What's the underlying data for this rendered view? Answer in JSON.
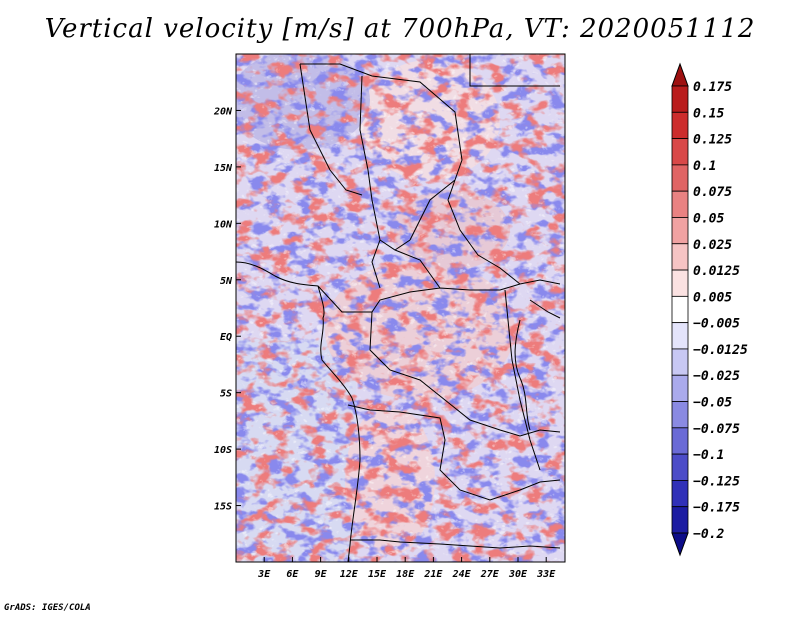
{
  "title": "Vertical velocity [m/s] at 700hPa, VT: 2020051112",
  "footer": "GrADS: IGES/COLA",
  "map": {
    "lon_range": [
      0,
      35
    ],
    "lat_range": [
      -20,
      25
    ],
    "lat_ticks": [
      {
        "value": 20,
        "label": "20N"
      },
      {
        "value": 15,
        "label": "15N"
      },
      {
        "value": 10,
        "label": "10N"
      },
      {
        "value": 5,
        "label": "5N"
      },
      {
        "value": 0,
        "label": "EQ"
      },
      {
        "value": -5,
        "label": "5S"
      },
      {
        "value": -10,
        "label": "10S"
      },
      {
        "value": -15,
        "label": "15S"
      }
    ],
    "lon_ticks": [
      {
        "value": 3,
        "label": "3E"
      },
      {
        "value": 6,
        "label": "6E"
      },
      {
        "value": 9,
        "label": "9E"
      },
      {
        "value": 12,
        "label": "12E"
      },
      {
        "value": 15,
        "label": "15E"
      },
      {
        "value": 18,
        "label": "18E"
      },
      {
        "value": 21,
        "label": "21E"
      },
      {
        "value": 24,
        "label": "24E"
      },
      {
        "value": 27,
        "label": "27E"
      },
      {
        "value": 30,
        "label": "30E"
      },
      {
        "value": 33,
        "label": "33E"
      }
    ]
  },
  "colorbar": {
    "labels": [
      "0.175",
      "0.15",
      "0.125",
      "0.1",
      "0.075",
      "0.05",
      "0.025",
      "0.0125",
      "0.005",
      "−0.005",
      "−0.0125",
      "−0.025",
      "−0.05",
      "−0.075",
      "−0.1",
      "−0.125",
      "−0.175",
      "−0.2"
    ],
    "colors": [
      "#9e1111",
      "#b91c1c",
      "#cc2d2d",
      "#d84848",
      "#e06464",
      "#e98282",
      "#f0a2a2",
      "#f6c4c4",
      "#fbe2e2",
      "#ffffff",
      "#e4e4fb",
      "#c8c8f3",
      "#aaaaec",
      "#8a8ae2",
      "#6a6ad6",
      "#4c4cc8",
      "#3030b8",
      "#1c1ca2",
      "#0c0c88"
    ]
  }
}
